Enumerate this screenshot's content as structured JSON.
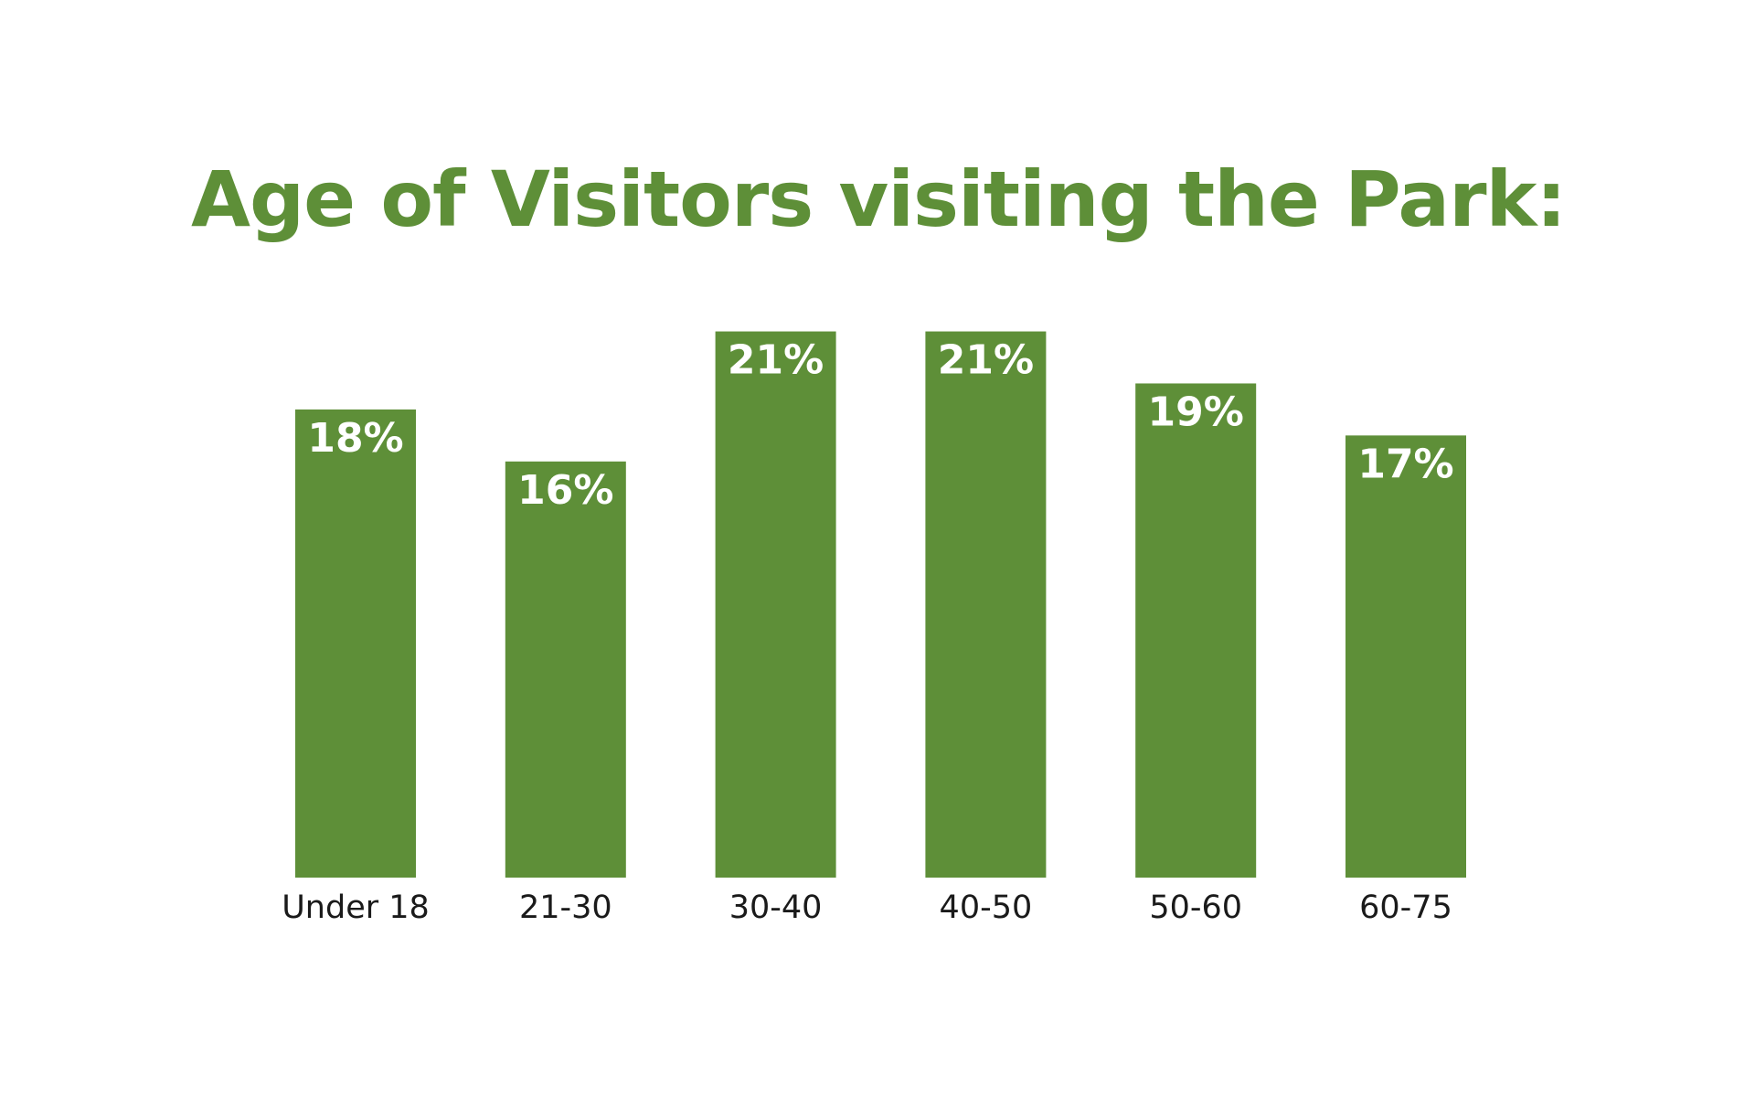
{
  "chart_data": {
    "type": "bar",
    "title": "Age of Visitors visiting the Park:",
    "categories": [
      "Under 18",
      "21-30",
      "30-40",
      "40-50",
      "50-60",
      "60-75"
    ],
    "values": [
      18,
      16,
      21,
      21,
      19,
      17
    ],
    "value_labels": [
      "18%",
      "16%",
      "21%",
      "21%",
      "19%",
      "17%"
    ],
    "color": "#5e8f38"
  }
}
